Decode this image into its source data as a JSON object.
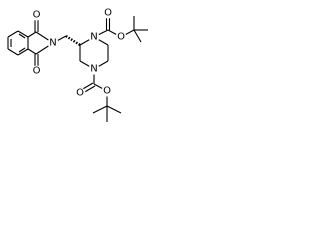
{
  "atoms": [
    "O",
    "O",
    "N",
    "N",
    "O",
    "O",
    "N",
    "O",
    "O"
  ]
}
